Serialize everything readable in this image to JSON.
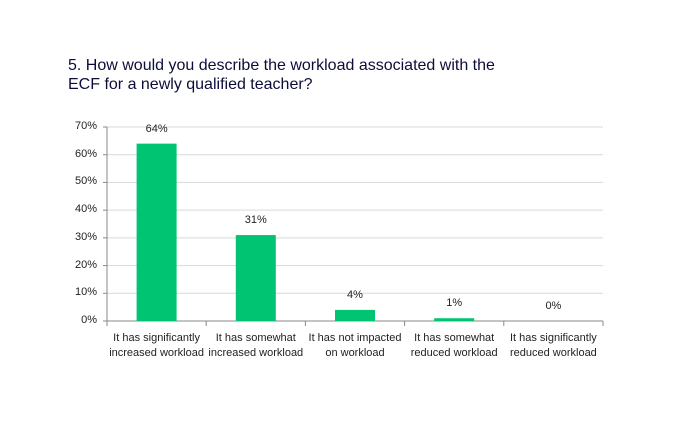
{
  "chart_data": {
    "type": "bar",
    "title": "5. How would you describe the workload associated with the ECF for a newly qualified teacher?",
    "categories": [
      "It has significantly increased workload",
      "It has somewhat increased workload",
      "It has not impacted on workload",
      "It has somewhat reduced workload",
      "It has significantly reduced workload"
    ],
    "values": [
      64,
      31,
      4,
      1,
      0
    ],
    "value_labels": [
      "64%",
      "31%",
      "4%",
      "1%",
      "0%"
    ],
    "color": "#00c472",
    "ylim": [
      0,
      70
    ],
    "yticks": [
      {
        "value": 0,
        "label": "0%"
      },
      {
        "value": 10,
        "label": "10%"
      },
      {
        "value": 20,
        "label": "20%"
      },
      {
        "value": 30,
        "label": "30%"
      },
      {
        "value": 40,
        "label": "40%"
      },
      {
        "value": 50,
        "label": "50%"
      },
      {
        "value": 60,
        "label": "60%"
      },
      {
        "value": 70,
        "label": "70%"
      }
    ],
    "grid": true
  }
}
